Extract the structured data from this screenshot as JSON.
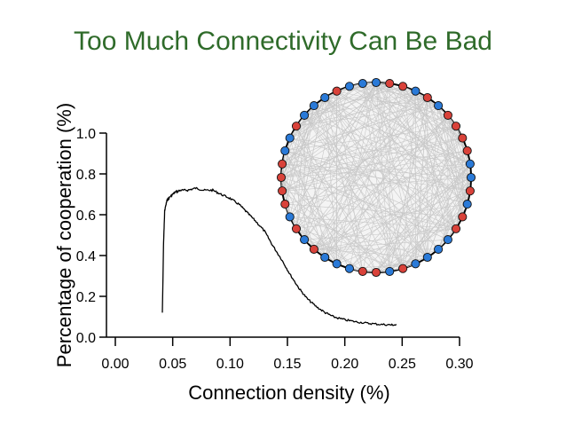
{
  "title": "Too Much Connectivity Can Be Bad",
  "colors": {
    "title": "#2f6b2a",
    "line": "#000000",
    "node_red": "#d9423a",
    "node_blue": "#2a7ad8",
    "edges": "#c8c8c8"
  },
  "network_inset": {
    "node_colors": [
      "blue",
      "red",
      "red",
      "blue",
      "red",
      "blue",
      "red",
      "red",
      "red",
      "red",
      "blue",
      "blue",
      "red",
      "blue",
      "red",
      "red",
      "blue",
      "blue",
      "blue",
      "blue",
      "red",
      "blue",
      "red",
      "red",
      "blue",
      "blue",
      "blue",
      "red",
      "blue",
      "red",
      "blue",
      "red",
      "red",
      "red",
      "red",
      "blue",
      "blue",
      "red",
      "blue",
      "blue",
      "blue",
      "red",
      "blue",
      "blue"
    ]
  },
  "chart_data": {
    "type": "line",
    "title": "",
    "xlabel": "Connection density (%)",
    "ylabel": "Percentage of cooperation (%)",
    "xlim": [
      0.0,
      0.3
    ],
    "ylim": [
      0.0,
      1.0
    ],
    "xticks": [
      "0.00",
      "0.05",
      "0.10",
      "0.15",
      "0.20",
      "0.25",
      "0.30"
    ],
    "yticks": [
      "0.0",
      "0.2",
      "0.4",
      "0.6",
      "0.8",
      "1.0"
    ],
    "grid": false,
    "series": [
      {
        "x": [
          0.041,
          0.042,
          0.043,
          0.045,
          0.048,
          0.052,
          0.057,
          0.063,
          0.07,
          0.077,
          0.085,
          0.092,
          0.1,
          0.108,
          0.115,
          0.122,
          0.13,
          0.137,
          0.145,
          0.152,
          0.16,
          0.167,
          0.175,
          0.183,
          0.19,
          0.2,
          0.21,
          0.22,
          0.23,
          0.24,
          0.245
        ],
        "y": [
          0.12,
          0.45,
          0.62,
          0.67,
          0.69,
          0.71,
          0.72,
          0.72,
          0.73,
          0.72,
          0.72,
          0.7,
          0.68,
          0.65,
          0.61,
          0.57,
          0.52,
          0.45,
          0.38,
          0.31,
          0.24,
          0.19,
          0.15,
          0.12,
          0.1,
          0.085,
          0.075,
          0.068,
          0.063,
          0.06,
          0.06
        ]
      }
    ]
  }
}
